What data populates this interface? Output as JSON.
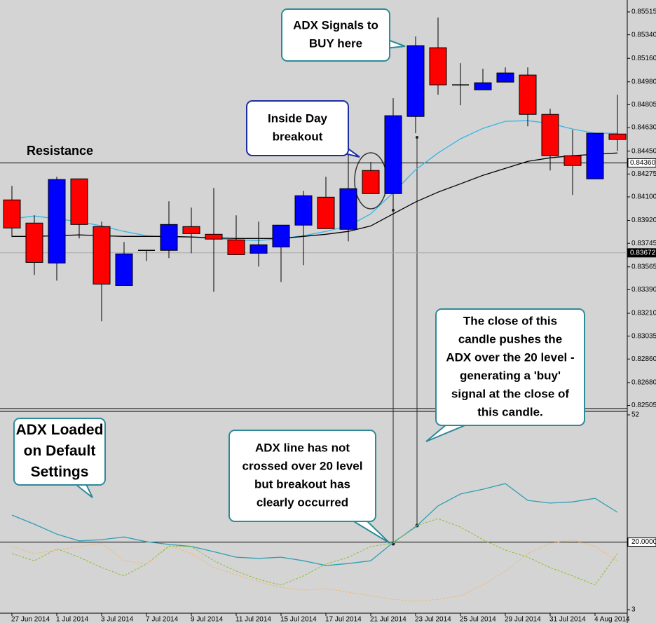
{
  "chart_data": [
    {
      "type": "candlestick",
      "categories": [
        "27 Jun 2014",
        null,
        "1 Jul 2014",
        null,
        "3 Jul 2014",
        null,
        "7 Jul 2014",
        null,
        "9 Jul 2014",
        null,
        "11 Jul 2014",
        null,
        "15 Jul 2014",
        null,
        "17 Jul 2014",
        null,
        "21 Jul 2014",
        null,
        "23 Jul 2014",
        null,
        "25 Jul 2014",
        null,
        "29 Jul 2014",
        null,
        "31 Jul 2014",
        null,
        "4 Aug 2014",
        null
      ],
      "open": [
        0.84077,
        0.839,
        0.83594,
        0.84238,
        0.83873,
        0.83422,
        0.83691,
        0.83691,
        0.83873,
        0.83814,
        0.83771,
        0.83669,
        0.83717,
        0.83884,
        0.84098,
        0.83852,
        0.84302,
        0.84125,
        0.84715,
        0.85241,
        0.84957,
        0.84919,
        0.84978,
        0.85032,
        0.84731,
        0.84415,
        0.84238,
        0.84581
      ],
      "high": [
        0.84184,
        0.83959,
        0.84254,
        0.84238,
        0.83911,
        0.83755,
        0.83691,
        0.84066,
        0.84018,
        0.84168,
        0.83959,
        0.83911,
        0.83884,
        0.84147,
        0.84254,
        0.84451,
        0.84367,
        0.84855,
        0.85327,
        0.85472,
        0.85123,
        0.8508,
        0.85091,
        0.85091,
        0.84774,
        0.84613,
        0.84587,
        0.84882
      ],
      "low": [
        0.83793,
        0.83503,
        0.8346,
        0.83782,
        0.83149,
        0.83422,
        0.8361,
        0.83632,
        0.83669,
        0.83374,
        0.83658,
        0.83567,
        0.83449,
        0.83578,
        0.83857,
        0.8376,
        0.84125,
        0.83997,
        0.84587,
        0.84882,
        0.84801,
        0.84919,
        0.84978,
        0.8464,
        0.84302,
        0.84115,
        0.84238,
        0.84451
      ],
      "close": [
        0.83862,
        0.83599,
        0.84233,
        0.83889,
        0.83433,
        0.83664,
        0.83691,
        0.83889,
        0.83819,
        0.83777,
        0.83658,
        0.83734,
        0.83884,
        0.84109,
        0.83857,
        0.84163,
        0.84125,
        0.84721,
        0.85257,
        0.84957,
        0.84957,
        0.84973,
        0.85048,
        0.84731,
        0.84415,
        0.8434,
        0.84587,
        0.84539
      ],
      "up_color": "#0000ff",
      "down_color": "#ff0000",
      "series": [
        {
          "color": "#35b6e6",
          "values": [
            0.83932,
            0.83954,
            0.83932,
            0.83911,
            0.83878,
            0.83836,
            0.83803,
            0.83793,
            0.83793,
            0.83782,
            0.83771,
            0.83766,
            0.83782,
            0.83803,
            0.83836,
            0.83878,
            0.8397,
            0.84131,
            0.84308,
            0.84436,
            0.84544,
            0.84624,
            0.84678,
            0.84683,
            0.84662,
            0.84619,
            0.84587,
            0.84587
          ]
        },
        {
          "color": "#000000",
          "values": [
            0.83798,
            0.83798,
            0.83803,
            0.83809,
            0.83803,
            0.83798,
            0.83798,
            0.83798,
            0.83793,
            0.83787,
            0.83782,
            0.83782,
            0.83782,
            0.83798,
            0.83814,
            0.83836,
            0.83878,
            0.8397,
            0.84061,
            0.84136,
            0.842,
            0.84265,
            0.84318,
            0.84372,
            0.84399,
            0.84415,
            0.84426,
            0.84436
          ]
        }
      ],
      "ylim": [
        0.82481,
        0.85606
      ],
      "yticks": [
        0.85515,
        {
          "value": 0.8534,
          "label": "0.85340"
        },
        {
          "value": 0.8516,
          "label": "0.85160"
        },
        {
          "value": 0.8498,
          "label": "0.84980"
        },
        0.84805,
        {
          "value": 0.8463,
          "label": "0.84630"
        },
        {
          "value": 0.8445,
          "label": "0.84450"
        },
        0.84275,
        {
          "value": 0.841,
          "label": "0.84100"
        },
        {
          "value": 0.8392,
          "label": "0.83920"
        },
        0.83745,
        0.83565,
        {
          "value": 0.8339,
          "label": "0.83390"
        },
        {
          "value": 0.8321,
          "label": "0.83210"
        },
        0.83035,
        {
          "value": 0.8286,
          "label": "0.82860"
        },
        {
          "value": 0.8268,
          "label": "0.82680"
        },
        0.82505
      ],
      "hlines": [
        {
          "value": 0.8436,
          "label": "0.84360"
        },
        0.83672
      ],
      "annotations": [
        [
          "Resistance"
        ],
        [
          "ADX Signals to",
          "BUY here"
        ],
        [
          "Inside Day",
          "breakout"
        ],
        [
          "The close of this",
          "candle pushes the",
          "ADX over the 20 level -",
          "generating a 'buy'",
          "signal at the close of",
          "this candle."
        ]
      ]
    },
    {
      "type": "line",
      "series": [
        {
          "color": "#2e9fb3",
          "dashed": false,
          "values": [
            26.8,
            24.5,
            22.0,
            20.3,
            20.6,
            21.3,
            20.1,
            19.4,
            18.9,
            17.6,
            16.2,
            15.9,
            16.2,
            15.3,
            14.1,
            14.6,
            15.3,
            19.9,
            23.8,
            29.1,
            32.1,
            33.3,
            34.7,
            30.5,
            29.8,
            30.1,
            31.0,
            27.5
          ]
        },
        {
          "color": "#8cbf2e",
          "dashed": true,
          "values": [
            17.1,
            15.3,
            18.3,
            16.2,
            13.6,
            11.5,
            14.5,
            18.9,
            18.9,
            15.3,
            12.7,
            10.6,
            9.2,
            11.5,
            14.5,
            16.2,
            18.9,
            19.7,
            24.1,
            25.9,
            23.8,
            20.6,
            18.0,
            16.2,
            13.6,
            11.5,
            9.2,
            17.1
          ]
        },
        {
          "color": "#f2b872",
          "dashed": true,
          "values": [
            18.9,
            17.1,
            18.0,
            18.9,
            19.7,
            15.3,
            14.5,
            19.2,
            17.1,
            13.6,
            11.8,
            10.0,
            8.6,
            7.9,
            8.3,
            7.4,
            6.5,
            5.6,
            5.1,
            5.6,
            6.5,
            9.2,
            12.7,
            17.1,
            19.7,
            20.6,
            18.9,
            15.3
          ]
        }
      ],
      "ylim": [
        -0.35,
        53.23
      ],
      "yticks": [
        52,
        {
          "value": 20,
          "label": "20.0000"
        },
        3
      ],
      "annotations": [
        [
          "ADX Loaded",
          "on Default",
          "Settings"
        ],
        [
          "ADX line has not",
          "crossed over 20 level",
          "but breakout has",
          "clearly occurred"
        ]
      ]
    }
  ]
}
